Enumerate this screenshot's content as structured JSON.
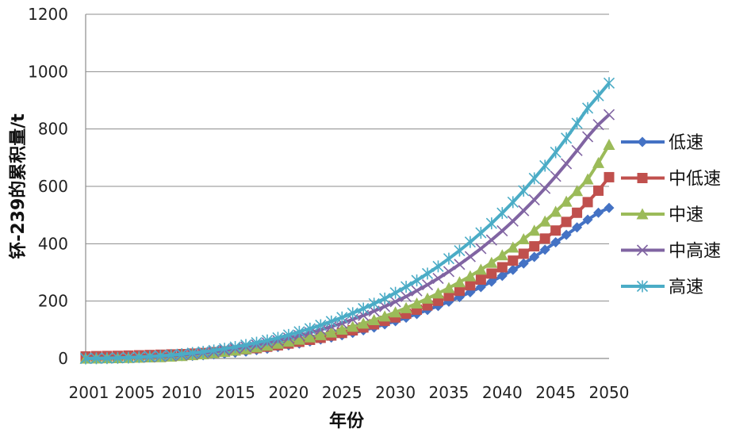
{
  "chart_data": {
    "type": "line",
    "title": "",
    "xlabel": "年份",
    "ylabel": "钚-239的累积量/t",
    "x": [
      2001,
      2002,
      2003,
      2004,
      2005,
      2006,
      2007,
      2008,
      2009,
      2010,
      2011,
      2012,
      2013,
      2014,
      2015,
      2016,
      2017,
      2018,
      2019,
      2020,
      2021,
      2022,
      2023,
      2024,
      2025,
      2026,
      2027,
      2028,
      2029,
      2030,
      2031,
      2032,
      2033,
      2034,
      2035,
      2036,
      2037,
      2038,
      2039,
      2040,
      2041,
      2042,
      2043,
      2044,
      2045,
      2046,
      2047,
      2048,
      2049,
      2050
    ],
    "xticks": [
      "2001",
      "2005",
      "2010",
      "2015",
      "2020",
      "2025",
      "2030",
      "2035",
      "2040",
      "2045",
      "2050"
    ],
    "xlim": [
      2001,
      2050
    ],
    "yticks": [
      "0",
      "200",
      "400",
      "600",
      "800",
      "1000",
      "1200"
    ],
    "ylim": [
      0,
      1200
    ],
    "grid": true,
    "legend_position": "right",
    "series": [
      {
        "name": "低速",
        "color": "#4472c4",
        "marker": "diamond",
        "values": [
          0,
          1,
          1.5,
          2,
          3,
          4,
          5,
          6,
          7,
          8,
          9,
          11,
          14,
          17,
          20,
          24,
          29,
          34,
          40,
          46,
          52,
          59,
          66,
          73,
          81,
          89,
          98,
          108,
          119,
          130,
          142,
          155,
          169,
          183,
          198,
          214,
          231,
          249,
          268,
          288,
          309,
          331,
          354,
          379,
          405,
          431,
          457,
          484,
          508,
          525
        ]
      },
      {
        "name": "中低速",
        "color": "#c0504d",
        "marker": "square",
        "values": [
          7,
          8,
          8.5,
          9,
          10,
          11,
          12,
          13,
          14,
          15,
          17,
          19,
          22,
          25,
          28,
          32,
          36,
          41,
          46,
          52,
          58,
          65,
          72,
          80,
          89,
          98,
          108,
          119,
          131,
          143,
          156,
          170,
          185,
          201,
          218,
          236,
          255,
          275,
          296,
          318,
          341,
          365,
          391,
          418,
          446,
          476,
          508,
          545,
          585,
          632
        ]
      },
      {
        "name": "中速",
        "color": "#9bbb59",
        "marker": "triangle",
        "values": [
          0,
          0.5,
          1,
          1.5,
          2,
          3,
          4,
          5,
          7,
          9,
          12,
          15,
          19,
          23,
          28,
          33,
          39,
          45,
          52,
          59,
          66,
          74,
          82,
          91,
          101,
          111,
          122,
          134,
          147,
          161,
          176,
          192,
          209,
          227,
          246,
          266,
          287,
          310,
          334,
          360,
          387,
          416,
          446,
          478,
          512,
          547,
          584,
          625,
          682,
          745
        ]
      },
      {
        "name": "中高速",
        "color": "#8064a2",
        "marker": "x",
        "values": [
          0,
          0.5,
          1,
          2,
          3,
          4,
          5,
          7,
          9,
          12,
          15,
          19,
          23,
          28,
          34,
          40,
          47,
          54,
          62,
          71,
          80,
          90,
          100,
          111,
          123,
          136,
          150,
          165,
          181,
          198,
          216,
          236,
          257,
          279,
          303,
          328,
          355,
          383,
          413,
          445,
          479,
          515,
          553,
          593,
          635,
          679,
          725,
          773,
          815,
          850
        ]
      },
      {
        "name": "高速",
        "color": "#4bacc6",
        "marker": "star",
        "values": [
          0,
          0.5,
          1,
          2,
          3,
          5,
          7,
          9,
          12,
          15,
          19,
          23,
          28,
          34,
          40,
          47,
          55,
          63,
          72,
          82,
          93,
          104,
          116,
          129,
          143,
          158,
          174,
          191,
          209,
          229,
          250,
          272,
          296,
          321,
          348,
          376,
          406,
          438,
          471,
          507,
          545,
          585,
          628,
          672,
          719,
          768,
          820,
          873,
          916,
          960
        ]
      }
    ]
  }
}
